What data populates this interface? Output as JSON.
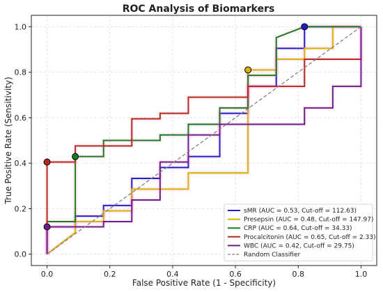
{
  "chart_data": {
    "type": "line",
    "title": "ROC Analysis of Biomarkers",
    "xlabel": "False Positive Rate (1 - Specificity)",
    "ylabel": "True Positive Rate (Sensitivity)",
    "xlim": [
      -0.05,
      1.05
    ],
    "ylim": [
      -0.05,
      1.05
    ],
    "xticks": [
      "0.0",
      "0.2",
      "0.4",
      "0.6",
      "0.8",
      "1.0"
    ],
    "yticks": [
      "0.0",
      "0.2",
      "0.4",
      "0.6",
      "0.8",
      "1.0"
    ],
    "grid": true,
    "legend_position": "bottom-right",
    "series": [
      {
        "name": "sMR (AUC = 0.53, Cut-off = 112.63)",
        "color": "#1f1fc8",
        "x": [
          0,
          0,
          0.09,
          0.09,
          0.18,
          0.18,
          0.27,
          0.27,
          0.36,
          0.36,
          0.45,
          0.45,
          0.55,
          0.55,
          0.64,
          0.64,
          0.73,
          0.73,
          0.82,
          0.82,
          1.0
        ],
        "y": [
          0,
          0.12,
          0.12,
          0.167,
          0.167,
          0.214,
          0.214,
          0.333,
          0.333,
          0.381,
          0.381,
          0.429,
          0.429,
          0.619,
          0.619,
          0.738,
          0.738,
          0.905,
          0.905,
          1.0,
          1.0
        ],
        "cutoff_point": [
          0.82,
          1.0
        ]
      },
      {
        "name": "Presepsin (AUC = 0.48, Cut-off = 147.97)",
        "color": "#d9b200",
        "x": [
          0,
          0.09,
          0.09,
          0.18,
          0.18,
          0.27,
          0.27,
          0.45,
          0.45,
          0.64,
          0.64,
          0.73,
          0.73,
          0.82,
          0.82,
          0.91,
          0.91,
          1.0
        ],
        "y": [
          0,
          0.095,
          0.143,
          0.143,
          0.19,
          0.19,
          0.286,
          0.286,
          0.357,
          0.357,
          0.81,
          0.81,
          0.857,
          0.857,
          0.905,
          0.905,
          1.0,
          1.0
        ],
        "cutoff_point": [
          0.64,
          0.81
        ]
      },
      {
        "name": "CRP (AUC = 0.64, Cut-off = 34.33)",
        "color": "#1b7a1b",
        "x": [
          0,
          0,
          0.09,
          0.09,
          0.18,
          0.18,
          0.36,
          0.36,
          0.45,
          0.45,
          0.55,
          0.55,
          0.64,
          0.64,
          0.73,
          0.73,
          0.82,
          0.82,
          1.0
        ],
        "y": [
          0,
          0.143,
          0.143,
          0.429,
          0.429,
          0.5,
          0.5,
          0.524,
          0.524,
          0.571,
          0.571,
          0.643,
          0.643,
          0.786,
          0.786,
          0.952,
          1.0,
          1.0,
          1.0
        ],
        "cutoff_point": [
          0.09,
          0.429
        ]
      },
      {
        "name": "Procalcitonin (AUC = 0.65, Cut-off = 2.33)",
        "color": "#b52a1a",
        "x": [
          0,
          0,
          0.09,
          0.09,
          0.27,
          0.27,
          0.36,
          0.36,
          0.45,
          0.45,
          0.64,
          0.64,
          0.82,
          0.82,
          1.0,
          1.0
        ],
        "y": [
          0,
          0.405,
          0.405,
          0.476,
          0.476,
          0.595,
          0.595,
          0.619,
          0.619,
          0.69,
          0.69,
          0.738,
          0.738,
          0.857,
          0.857,
          1.0
        ],
        "cutoff_point": [
          0,
          0.405
        ]
      },
      {
        "name": "WBC (AUC = 0.42, Cut-off = 29.75)",
        "color": "#6a1f8a",
        "x": [
          0,
          0,
          0.18,
          0.18,
          0.27,
          0.27,
          0.36,
          0.36,
          0.45,
          0.45,
          0.55,
          0.55,
          0.82,
          0.82,
          0.91,
          0.91,
          1.0,
          1.0
        ],
        "y": [
          0,
          0.12,
          0.12,
          0.143,
          0.143,
          0.238,
          0.238,
          0.405,
          0.405,
          0.524,
          0.524,
          0.571,
          0.571,
          0.643,
          0.643,
          0.738,
          0.738,
          1.0
        ],
        "cutoff_point": [
          0,
          0.12
        ]
      },
      {
        "name": "Random Classifier",
        "color": "#808080",
        "dashed": true,
        "x": [
          0,
          1
        ],
        "y": [
          0,
          1
        ]
      }
    ]
  }
}
